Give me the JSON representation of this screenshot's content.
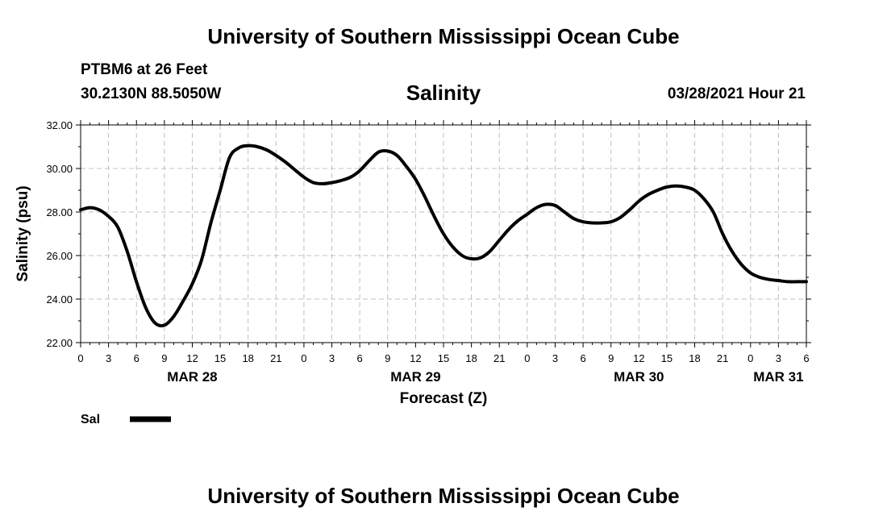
{
  "header": {
    "title_top": "University of Southern Mississippi Ocean Cube",
    "title_bottom": "University of Southern Mississippi Ocean Cube",
    "station": "PTBM6 at 26 Feet",
    "coords": "30.2130N  88.5050W",
    "timestamp": "03/28/2021 Hour 21"
  },
  "colors": {
    "line": "#000000",
    "grid": "#c0c0c0",
    "background": "#ffffff"
  },
  "chart_data": {
    "type": "line",
    "title": "Salinity",
    "xlabel": "Forecast (Z)",
    "ylabel": "Salinity (psu)",
    "xlim": [
      0,
      78
    ],
    "ylim": [
      22,
      32
    ],
    "grid": true,
    "y_ticks": [
      22,
      24,
      26,
      28,
      30,
      32
    ],
    "y_tick_labels": [
      "22.00",
      "24.00",
      "26.00",
      "28.00",
      "30.00",
      "32.00"
    ],
    "x_ticks": [
      0,
      3,
      6,
      9,
      12,
      15,
      18,
      21,
      24,
      27,
      30,
      33,
      36,
      39,
      42,
      45,
      48,
      51,
      54,
      57,
      60,
      63,
      66,
      69,
      72,
      75,
      78
    ],
    "x_tick_labels": [
      "0",
      "3",
      "6",
      "9",
      "12",
      "15",
      "18",
      "21",
      "0",
      "3",
      "6",
      "9",
      "12",
      "15",
      "18",
      "21",
      "0",
      "3",
      "6",
      "9",
      "12",
      "15",
      "18",
      "21",
      "0",
      "3",
      "6"
    ],
    "day_labels": [
      {
        "x": 12,
        "label": "MAR 28"
      },
      {
        "x": 36,
        "label": "MAR 29"
      },
      {
        "x": 60,
        "label": "MAR 30"
      },
      {
        "x": 75,
        "label": "MAR 31"
      }
    ],
    "legend": {
      "label": "Sal",
      "position": "bottom-left"
    },
    "series": [
      {
        "name": "Sal",
        "x": [
          0,
          1,
          2,
          3,
          4,
          5,
          6,
          7,
          8,
          9,
          10,
          11,
          12,
          13,
          14,
          15,
          16,
          17,
          18,
          19,
          20,
          21,
          22,
          23,
          24,
          25,
          26,
          27,
          28,
          29,
          30,
          31,
          32,
          33,
          34,
          35,
          36,
          37,
          38,
          39,
          40,
          41,
          42,
          43,
          44,
          45,
          46,
          47,
          48,
          49,
          50,
          51,
          52,
          53,
          54,
          55,
          56,
          57,
          58,
          59,
          60,
          61,
          62,
          63,
          64,
          65,
          66,
          67,
          68,
          69,
          70,
          71,
          72,
          73,
          74,
          75,
          76,
          77,
          78
        ],
        "values": [
          28.1,
          28.2,
          28.1,
          27.8,
          27.3,
          26.2,
          24.8,
          23.6,
          22.9,
          22.8,
          23.2,
          23.9,
          24.7,
          25.8,
          27.5,
          29.0,
          30.5,
          30.95,
          31.05,
          31.0,
          30.85,
          30.6,
          30.3,
          29.95,
          29.6,
          29.35,
          29.3,
          29.35,
          29.45,
          29.6,
          29.9,
          30.35,
          30.75,
          30.8,
          30.6,
          30.1,
          29.5,
          28.7,
          27.8,
          27.0,
          26.4,
          26.0,
          25.85,
          25.9,
          26.2,
          26.7,
          27.2,
          27.6,
          27.9,
          28.2,
          28.35,
          28.3,
          28.0,
          27.7,
          27.55,
          27.5,
          27.5,
          27.55,
          27.75,
          28.1,
          28.5,
          28.8,
          29.0,
          29.15,
          29.2,
          29.15,
          29.0,
          28.6,
          28.0,
          27.0,
          26.2,
          25.6,
          25.2,
          25.0,
          24.9,
          24.85,
          24.8,
          24.8,
          24.8
        ]
      }
    ]
  }
}
